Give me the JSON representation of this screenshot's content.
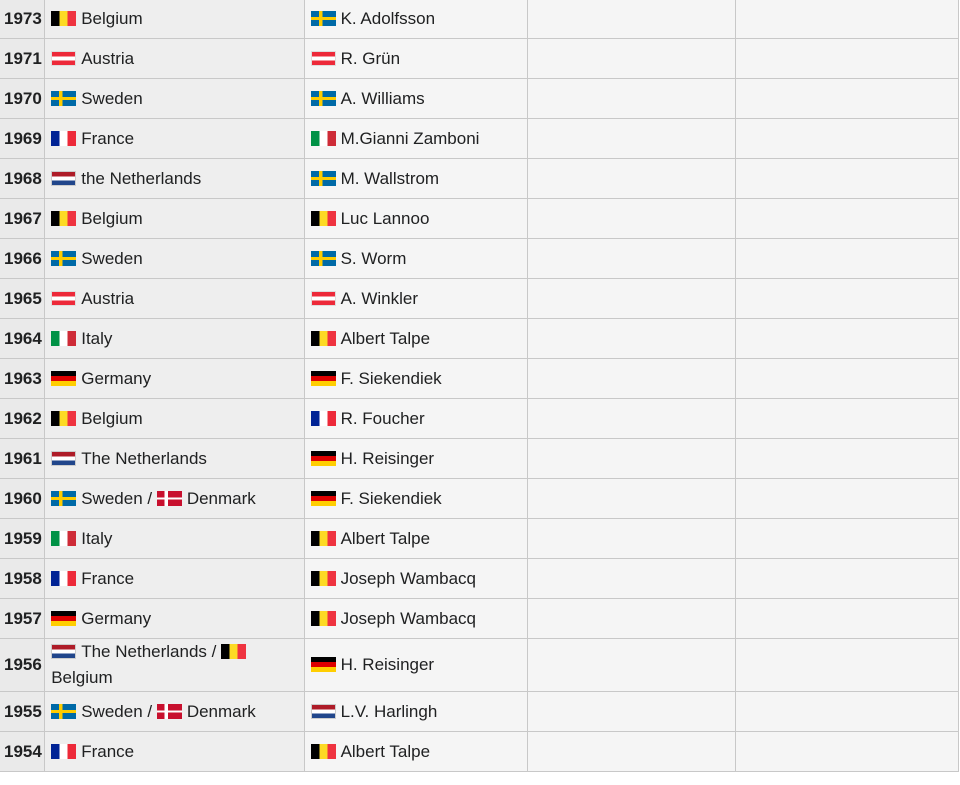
{
  "rows": [
    {
      "year": "1973",
      "countries": [
        {
          "flag": "be",
          "name": "Belgium"
        }
      ],
      "winner": {
        "flag": "se",
        "name": "K. Adolfsson"
      }
    },
    {
      "year": "1971",
      "countries": [
        {
          "flag": "at",
          "name": "Austria"
        }
      ],
      "winner": {
        "flag": "at",
        "name": "R. Grün"
      }
    },
    {
      "year": "1970",
      "countries": [
        {
          "flag": "se",
          "name": "Sweden"
        }
      ],
      "winner": {
        "flag": "se",
        "name": "A. Williams"
      }
    },
    {
      "year": "1969",
      "countries": [
        {
          "flag": "fr",
          "name": "France"
        }
      ],
      "winner": {
        "flag": "it",
        "name": "M.Gianni Zamboni"
      }
    },
    {
      "year": "1968",
      "countries": [
        {
          "flag": "nl",
          "name": "the Netherlands"
        }
      ],
      "winner": {
        "flag": "se",
        "name": "M. Wallstrom"
      }
    },
    {
      "year": "1967",
      "countries": [
        {
          "flag": "be",
          "name": "Belgium"
        }
      ],
      "winner": {
        "flag": "be",
        "name": "Luc Lannoo"
      }
    },
    {
      "year": "1966",
      "countries": [
        {
          "flag": "se",
          "name": "Sweden"
        }
      ],
      "winner": {
        "flag": "se",
        "name": "S. Worm"
      }
    },
    {
      "year": "1965",
      "countries": [
        {
          "flag": "at",
          "name": "Austria"
        }
      ],
      "winner": {
        "flag": "at",
        "name": "A. Winkler"
      }
    },
    {
      "year": "1964",
      "countries": [
        {
          "flag": "it",
          "name": "Italy"
        }
      ],
      "winner": {
        "flag": "be",
        "name": "Albert Talpe"
      }
    },
    {
      "year": "1963",
      "countries": [
        {
          "flag": "de",
          "name": "Germany"
        }
      ],
      "winner": {
        "flag": "de",
        "name": "F. Siekendiek"
      }
    },
    {
      "year": "1962",
      "countries": [
        {
          "flag": "be",
          "name": "Belgium"
        }
      ],
      "winner": {
        "flag": "fr",
        "name": "R. Foucher"
      }
    },
    {
      "year": "1961",
      "countries": [
        {
          "flag": "nl",
          "name": "The Netherlands"
        }
      ],
      "winner": {
        "flag": "de",
        "name": "H. Reisinger"
      }
    },
    {
      "year": "1960",
      "countries": [
        {
          "flag": "se",
          "name": "Sweden"
        },
        {
          "flag": "dk",
          "name": "Denmark"
        }
      ],
      "winner": {
        "flag": "de",
        "name": "F. Siekendiek"
      }
    },
    {
      "year": "1959",
      "countries": [
        {
          "flag": "it",
          "name": "Italy"
        }
      ],
      "winner": {
        "flag": "be",
        "name": "Albert Talpe"
      }
    },
    {
      "year": "1958",
      "countries": [
        {
          "flag": "fr",
          "name": "France"
        }
      ],
      "winner": {
        "flag": "be",
        "name": "Joseph Wambacq"
      }
    },
    {
      "year": "1957",
      "countries": [
        {
          "flag": "de",
          "name": "Germany"
        }
      ],
      "winner": {
        "flag": "be",
        "name": "Joseph Wambacq"
      }
    },
    {
      "year": "1956",
      "countries": [
        {
          "flag": "nl",
          "name": "The Netherlands"
        },
        {
          "flag": "be",
          "name": "Belgium"
        }
      ],
      "winner": {
        "flag": "de",
        "name": "H. Reisinger"
      }
    },
    {
      "year": "1955",
      "countries": [
        {
          "flag": "se",
          "name": "Sweden"
        },
        {
          "flag": "dk",
          "name": "Denmark"
        }
      ],
      "winner": {
        "flag": "nl",
        "name": "L.V. Harlingh"
      }
    },
    {
      "year": "1954",
      "countries": [
        {
          "flag": "fr",
          "name": "France"
        }
      ],
      "winner": {
        "flag": "be",
        "name": "Albert Talpe"
      }
    }
  ],
  "separator": " / "
}
